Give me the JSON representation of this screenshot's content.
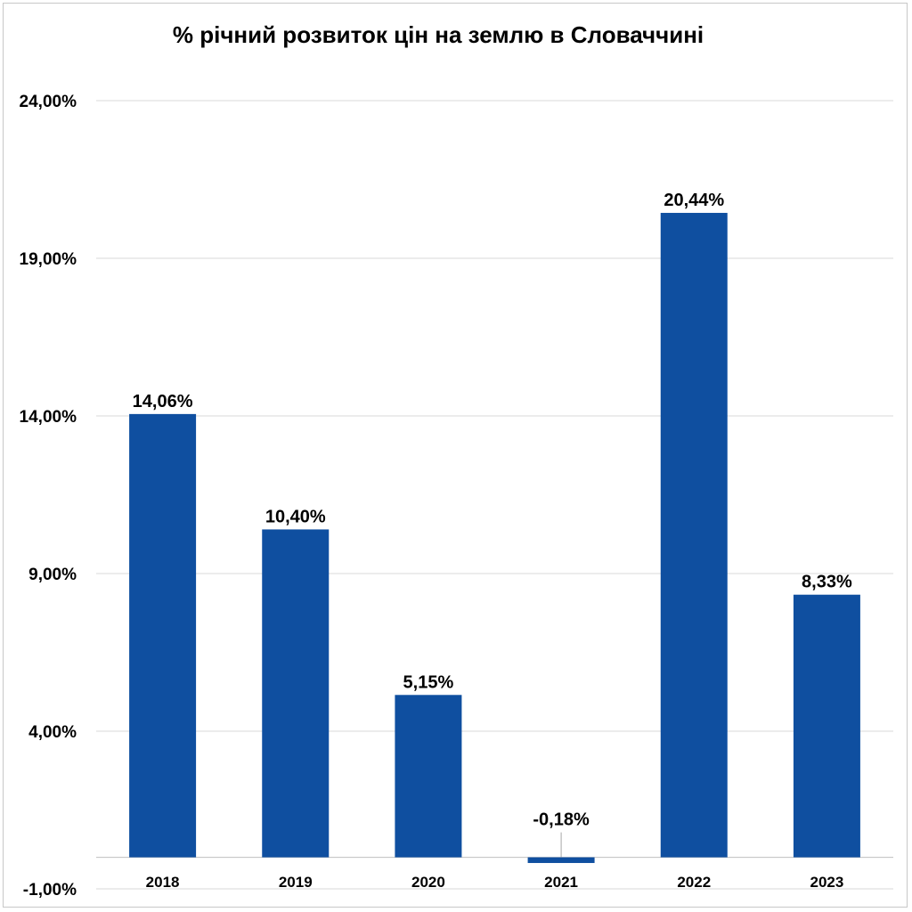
{
  "chart_data": {
    "type": "bar",
    "title": "% річний розвиток цін на землю в Словаччині",
    "xlabel": "",
    "ylabel": "",
    "categories": [
      "2018",
      "2019",
      "2020",
      "2021",
      "2022",
      "2023"
    ],
    "values": [
      14.06,
      10.4,
      5.15,
      -0.18,
      20.44,
      8.33
    ],
    "data_labels": [
      "14,06%",
      "10,40%",
      "5,15%",
      "-0,18%",
      "20,44%",
      "8,33%"
    ],
    "ylim": [
      -1,
      24
    ],
    "yticks": [
      -1,
      4,
      9,
      14,
      19,
      24
    ],
    "ytick_labels": [
      "-1,00%",
      "4,00%",
      "9,00%",
      "14,00%",
      "19,00%",
      "24,00%"
    ],
    "grid": true,
    "legend": "none",
    "bar_color": "#0f4fa0"
  }
}
